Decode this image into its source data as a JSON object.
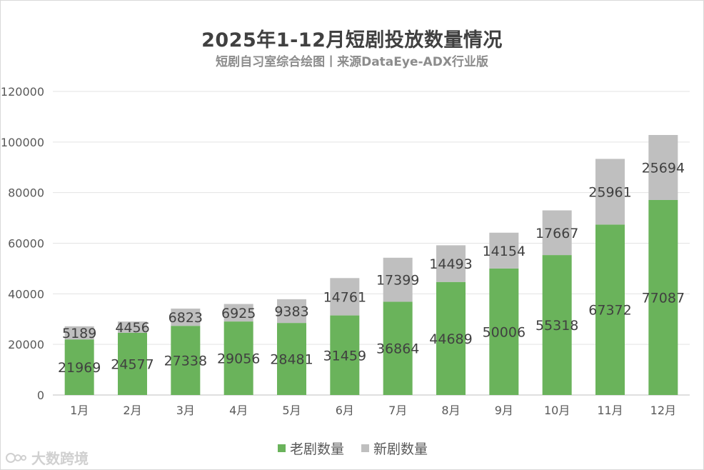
{
  "chart_data": {
    "type": "bar",
    "stacked": true,
    "title": "2025年1-12月短剧投放数量情况",
    "subtitle": "短剧自习室综合绘图丨来源DataEye-ADX行业版",
    "categories": [
      "1月",
      "2月",
      "3月",
      "4月",
      "5月",
      "6月",
      "7月",
      "8月",
      "9月",
      "10月",
      "11月",
      "12月"
    ],
    "series": [
      {
        "name": "老剧数量",
        "color": "#6ab35b",
        "values": [
          21969,
          24577,
          27338,
          29056,
          28481,
          31459,
          36864,
          44689,
          50006,
          55318,
          67372,
          77087
        ]
      },
      {
        "name": "新剧数量",
        "color": "#bfbfbf",
        "values": [
          5189,
          4456,
          6823,
          6925,
          9383,
          14761,
          17399,
          14493,
          14154,
          17667,
          25961,
          25694
        ]
      }
    ],
    "ylim": [
      0,
      120000
    ],
    "yticks": [
      0,
      20000,
      40000,
      60000,
      80000,
      100000,
      120000
    ],
    "grid": true,
    "legend_position": "bottom"
  },
  "legend": {
    "old_label": "老剧数量",
    "new_label": "新剧数量"
  },
  "watermark": "大数跨境"
}
